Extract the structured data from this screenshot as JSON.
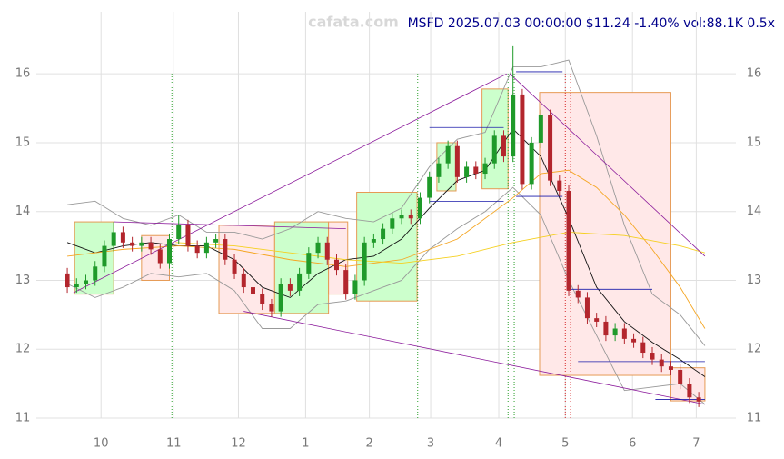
{
  "chart_data": {
    "type": "candlestick",
    "title": "MSFD 2025.07.03 00:00:00 $11.24 -1.40% vol:88.1K 0.5x",
    "watermark": "cafata.com",
    "xlim": [
      -10,
      216
    ],
    "ylim": [
      11,
      16.9
    ],
    "xticks": [
      {
        "value": 10.9,
        "label": "10"
      },
      {
        "value": 34.4,
        "label": "11"
      },
      {
        "value": 55.3,
        "label": "12"
      },
      {
        "value": 77,
        "label": "1"
      },
      {
        "value": 97.6,
        "label": "2"
      },
      {
        "value": 117.4,
        "label": "3"
      },
      {
        "value": 139.4,
        "label": "4"
      },
      {
        "value": 160.9,
        "label": "5"
      },
      {
        "value": 182.6,
        "label": "6"
      },
      {
        "value": 203.2,
        "label": "7"
      }
    ],
    "yticks": [
      11,
      12,
      13,
      14,
      15,
      16
    ],
    "grid": true,
    "up_color": "#1f9a2a",
    "down_color": "#b3262d",
    "x": [
      0,
      3,
      6,
      9,
      12,
      15,
      18,
      21,
      24,
      27,
      30,
      33,
      36,
      39,
      42,
      45,
      48,
      51,
      54,
      57,
      60,
      63,
      66,
      69,
      72,
      75,
      78,
      81,
      84,
      87,
      90,
      93,
      96,
      99,
      102,
      105,
      108,
      111,
      114,
      117,
      120,
      123,
      126,
      129,
      132,
      135,
      138,
      141,
      144,
      147,
      150,
      153,
      156,
      159,
      162,
      165,
      168,
      171,
      174,
      177,
      180,
      183,
      186,
      189,
      192,
      195,
      198,
      201,
      204
    ],
    "open": [
      13.1,
      12.9,
      12.95,
      13.0,
      13.2,
      13.5,
      13.7,
      13.55,
      13.5,
      13.55,
      13.45,
      13.25,
      13.6,
      13.8,
      13.5,
      13.4,
      13.55,
      13.6,
      13.3,
      13.1,
      12.9,
      12.8,
      12.65,
      12.55,
      12.95,
      12.85,
      13.1,
      13.4,
      13.55,
      13.3,
      13.15,
      12.8,
      13.0,
      13.55,
      13.6,
      13.75,
      13.9,
      13.95,
      13.9,
      14.2,
      14.5,
      14.7,
      14.95,
      14.5,
      14.65,
      14.55,
      14.7,
      15.1,
      14.8,
      15.7,
      14.4,
      15.0,
      15.4,
      14.45,
      14.3,
      12.85,
      12.75,
      12.45,
      12.4,
      12.2,
      12.3,
      12.15,
      12.1,
      11.95,
      11.85,
      11.75,
      11.7,
      11.5,
      11.3
    ],
    "close": [
      12.9,
      12.95,
      13.0,
      13.2,
      13.5,
      13.7,
      13.55,
      13.5,
      13.55,
      13.45,
      13.25,
      13.6,
      13.8,
      13.5,
      13.4,
      13.55,
      13.6,
      13.3,
      13.1,
      12.9,
      12.8,
      12.65,
      12.55,
      12.95,
      12.85,
      13.1,
      13.4,
      13.55,
      13.3,
      13.15,
      12.8,
      13.0,
      13.55,
      13.6,
      13.75,
      13.9,
      13.95,
      13.9,
      14.2,
      14.5,
      14.7,
      14.95,
      14.5,
      14.65,
      14.55,
      14.7,
      15.1,
      14.8,
      15.7,
      14.4,
      15.0,
      15.4,
      14.45,
      14.3,
      12.85,
      12.75,
      12.45,
      12.4,
      12.2,
      12.3,
      12.15,
      12.1,
      11.95,
      11.85,
      11.75,
      11.7,
      11.5,
      11.3,
      11.24
    ],
    "high": [
      13.18,
      13.03,
      13.08,
      13.28,
      13.58,
      13.85,
      13.78,
      13.63,
      13.63,
      13.63,
      13.53,
      13.68,
      13.95,
      13.88,
      13.58,
      13.63,
      13.68,
      13.68,
      13.38,
      13.18,
      12.98,
      12.88,
      12.73,
      13.03,
      13.03,
      13.18,
      13.48,
      13.63,
      13.63,
      13.38,
      13.23,
      13.08,
      13.63,
      13.68,
      13.83,
      13.98,
      14.03,
      14.03,
      14.28,
      14.58,
      14.78,
      15.03,
      15.03,
      14.73,
      14.73,
      14.78,
      15.18,
      15.18,
      16.4,
      15.78,
      15.08,
      15.48,
      15.48,
      14.53,
      14.38,
      12.93,
      12.83,
      12.53,
      12.48,
      12.38,
      12.38,
      12.23,
      12.18,
      12.03,
      11.93,
      11.83,
      11.78,
      11.58,
      11.38
    ],
    "low": [
      12.82,
      12.82,
      12.87,
      12.92,
      13.12,
      13.42,
      13.47,
      13.42,
      13.42,
      13.37,
      13.17,
      13.17,
      13.52,
      13.42,
      13.32,
      13.32,
      13.47,
      13.22,
      13.02,
      12.82,
      12.72,
      12.57,
      12.47,
      12.47,
      12.77,
      12.77,
      13.02,
      13.32,
      13.22,
      13.07,
      12.72,
      12.72,
      12.92,
      13.47,
      13.52,
      13.67,
      13.82,
      13.82,
      13.82,
      14.12,
      14.42,
      14.62,
      14.42,
      14.42,
      14.47,
      14.47,
      14.62,
      14.72,
      14.72,
      14.32,
      14.32,
      14.92,
      14.37,
      14.22,
      12.77,
      12.67,
      12.37,
      12.32,
      12.12,
      12.12,
      12.07,
      12.02,
      11.87,
      11.77,
      11.67,
      11.62,
      11.42,
      11.22,
      11.16
    ],
    "boxes": [
      {
        "x": [
          2.4,
          15
        ],
        "y": [
          12.8,
          13.85
        ],
        "color": "#ccffcc"
      },
      {
        "x": [
          24,
          33
        ],
        "y": [
          13.0,
          13.65
        ],
        "color": "#ffe8e8"
      },
      {
        "x": [
          49,
          67
        ],
        "y": [
          12.52,
          13.8
        ],
        "color": "#ffe8e8"
      },
      {
        "x": [
          67,
          84.4
        ],
        "y": [
          12.52,
          13.85
        ],
        "color": "#ccffcc"
      },
      {
        "x": [
          84.4,
          90.6
        ],
        "y": [
          12.8,
          13.85
        ],
        "color": "#ffe8e8"
      },
      {
        "x": [
          93.5,
          113
        ],
        "y": [
          12.7,
          14.28
        ],
        "color": "#ccffcc"
      },
      {
        "x": [
          119.4,
          125.6
        ],
        "y": [
          14.3,
          15.0
        ],
        "color": "#ccffcc"
      },
      {
        "x": [
          134,
          142.4
        ],
        "y": [
          14.33,
          15.78
        ],
        "color": "#ccffcc"
      },
      {
        "x": [
          152.6,
          195
        ],
        "y": [
          11.62,
          15.73
        ],
        "color": "#ffe8e8"
      },
      {
        "x": [
          195,
          206
        ],
        "y": [
          11.25,
          11.73
        ],
        "color": "#ffe8e8"
      }
    ],
    "lines": [
      {
        "color": "#999999",
        "x": [
          0,
          9,
          18,
          27,
          36,
          45,
          54,
          63,
          72,
          81,
          90,
          99,
          108,
          117,
          126,
          135,
          144,
          153,
          162,
          171,
          180,
          189,
          198,
          206
        ],
        "values": [
          14.1,
          14.15,
          13.9,
          13.8,
          13.95,
          13.7,
          13.7,
          13.6,
          13.75,
          14.0,
          13.9,
          13.85,
          14.05,
          14.65,
          15.05,
          15.15,
          16.1,
          16.1,
          16.2,
          15.1,
          13.8,
          12.8,
          12.5,
          12.05
        ]
      },
      {
        "color": "#999999",
        "x": [
          0,
          9,
          18,
          27,
          36,
          45,
          54,
          63,
          72,
          81,
          90,
          99,
          108,
          117,
          126,
          135,
          144,
          153,
          162,
          171,
          180,
          189,
          198,
          206
        ],
        "values": [
          12.95,
          12.75,
          12.9,
          13.1,
          13.05,
          13.1,
          12.85,
          12.3,
          12.3,
          12.65,
          12.7,
          12.85,
          13.0,
          13.45,
          13.75,
          14.0,
          14.35,
          13.95,
          13.0,
          12.2,
          11.4,
          11.45,
          11.5,
          11.2
        ]
      },
      {
        "color": "#111111",
        "x": [
          0,
          9,
          18,
          27,
          36,
          45,
          54,
          63,
          72,
          81,
          90,
          99,
          108,
          117,
          126,
          135,
          144,
          153,
          162,
          171,
          180,
          189,
          198,
          206
        ],
        "values": [
          13.55,
          13.4,
          13.5,
          13.55,
          13.5,
          13.5,
          13.3,
          12.9,
          12.75,
          13.1,
          13.3,
          13.35,
          13.6,
          14.05,
          14.45,
          14.6,
          15.2,
          14.8,
          13.9,
          12.9,
          12.4,
          12.1,
          11.85,
          11.6
        ]
      },
      {
        "color": "#f5a623",
        "x": [
          0,
          18,
          36,
          54,
          72,
          90,
          108,
          126,
          144,
          153,
          162,
          171,
          180,
          189,
          198,
          206
        ],
        "values": [
          13.35,
          13.45,
          13.5,
          13.45,
          13.3,
          13.2,
          13.3,
          13.6,
          14.2,
          14.55,
          14.6,
          14.35,
          13.95,
          13.45,
          12.9,
          12.3
        ]
      },
      {
        "color": "#f5d020",
        "x": [
          35,
          54,
          72,
          90,
          108,
          126,
          144,
          162,
          180,
          198,
          206
        ],
        "values": [
          13.55,
          13.5,
          13.4,
          13.3,
          13.25,
          13.35,
          13.55,
          13.7,
          13.65,
          13.5,
          13.4
        ]
      }
    ],
    "trend_lines": [
      {
        "x": [
          2,
          142
        ],
        "y": [
          12.82,
          16.0
        ]
      },
      {
        "x": [
          15,
          90
        ],
        "y": [
          13.85,
          13.75
        ]
      },
      {
        "x": [
          57,
          206
        ],
        "y": [
          12.55,
          11.2
        ]
      },
      {
        "x": [
          143,
          206
        ],
        "y": [
          16.0,
          13.35
        ]
      }
    ],
    "levels": [
      {
        "x": [
          117,
          141
        ],
        "y": 15.22
      },
      {
        "x": [
          117,
          141
        ],
        "y": 14.15
      },
      {
        "x": [
          145,
          160
        ],
        "y": 16.03
      },
      {
        "x": [
          145,
          160
        ],
        "y": 14.22
      },
      {
        "x": [
          162,
          189
        ],
        "y": 12.87
      },
      {
        "x": [
          165,
          206
        ],
        "y": 11.82
      },
      {
        "x": [
          190,
          206
        ],
        "y": 11.27
      }
    ],
    "event_lines": [
      {
        "x": 33.8,
        "color": "#2ca02c"
      },
      {
        "x": 113.2,
        "color": "#2ca02c"
      },
      {
        "x": 142.4,
        "color": "#2ca02c"
      },
      {
        "x": 144.4,
        "color": "#2ca02c"
      },
      {
        "x": 160.9,
        "color": "#d62728"
      },
      {
        "x": 162.6,
        "color": "#d62728"
      }
    ]
  }
}
